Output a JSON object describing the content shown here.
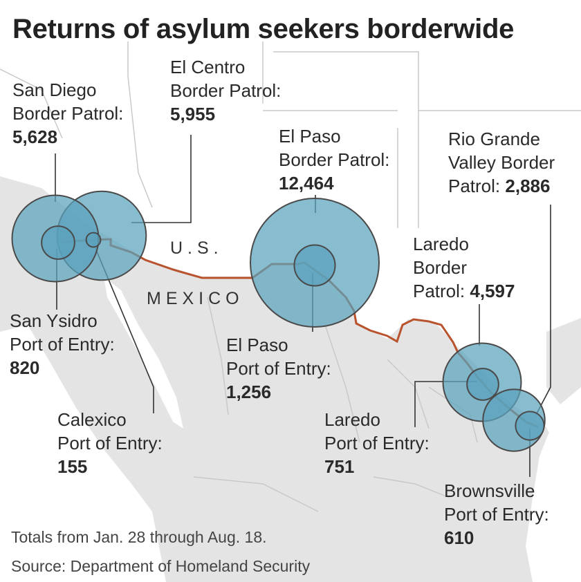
{
  "title": "Returns of asylum seekers borderwide",
  "countries": {
    "us": "U.S.",
    "mexico": "MEXICO"
  },
  "colors": {
    "land_mexico": "#e4e4e4",
    "land_us": "#ffffff",
    "circle_fill": "#5aa2bd",
    "circle_stroke": "#4a4a4a",
    "border_line": "#b8532e",
    "state_line": "#c9c9c9"
  },
  "stations": [
    {
      "id": "san-diego-bp",
      "name_lines": [
        "San Diego",
        "Border Patrol:"
      ],
      "value_text": "5,628",
      "value": 5628,
      "kind": "border-patrol"
    },
    {
      "id": "el-centro-bp",
      "name_lines": [
        "El Centro",
        "Border Patrol:"
      ],
      "value_text": "5,955",
      "value": 5955,
      "kind": "border-patrol"
    },
    {
      "id": "el-paso-bp",
      "name_lines": [
        "El Paso",
        "Border Patrol:"
      ],
      "value_text": "12,464",
      "value": 12464,
      "kind": "border-patrol"
    },
    {
      "id": "rio-grande-bp",
      "name_lines": [
        "Rio Grande",
        "Valley Border",
        "Patrol:"
      ],
      "value_text": "2,886",
      "value": 2886,
      "kind": "border-patrol"
    },
    {
      "id": "laredo-bp",
      "name_lines": [
        "Laredo",
        "Border",
        "Patrol:"
      ],
      "value_text": "4,597",
      "value": 4597,
      "kind": "border-patrol"
    },
    {
      "id": "san-ysidro-poe",
      "name_lines": [
        "San Ysidro",
        "Port of Entry:"
      ],
      "value_text": "820",
      "value": 820,
      "kind": "port-of-entry"
    },
    {
      "id": "calexico-poe",
      "name_lines": [
        "Calexico",
        "Port of Entry:"
      ],
      "value_text": "155",
      "value": 155,
      "kind": "port-of-entry"
    },
    {
      "id": "el-paso-poe",
      "name_lines": [
        "El Paso",
        "Port of Entry:"
      ],
      "value_text": "1,256",
      "value": 1256,
      "kind": "port-of-entry"
    },
    {
      "id": "laredo-poe",
      "name_lines": [
        "Laredo",
        "Port of Entry:"
      ],
      "value_text": "751",
      "value": 751,
      "kind": "port-of-entry"
    },
    {
      "id": "brownsville-poe",
      "name_lines": [
        "Brownsville",
        "Port of Entry:"
      ],
      "value_text": "610",
      "value": 610,
      "kind": "port-of-entry"
    }
  ],
  "footnotes": {
    "period": "Totals from Jan. 28 through Aug. 18.",
    "source": "Source: Department of Homeland Security"
  }
}
